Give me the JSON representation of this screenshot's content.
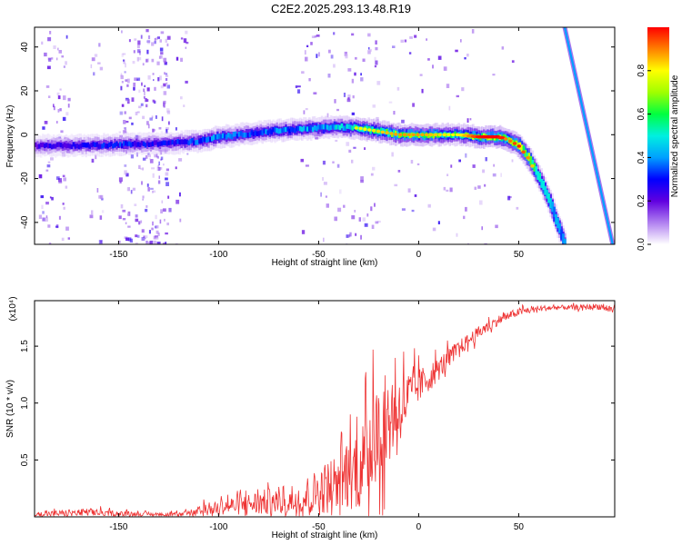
{
  "chart_data": [
    {
      "type": "heatmap",
      "title": "C2E2.2025.293.13.48.R19",
      "xlabel": "Height of straight line (km)",
      "ylabel": "Frequency (Hz)",
      "xlim": [
        -192,
        98
      ],
      "ylim": [
        -50,
        49
      ],
      "xticks": [
        -150,
        -100,
        -50,
        0,
        50
      ],
      "yticks": [
        -40,
        -20,
        0,
        20,
        40
      ],
      "colorbar": {
        "label": "Normalized spectral amplitude",
        "range": [
          0,
          1
        ],
        "ticks": [
          0.0,
          0.2,
          0.4,
          0.6,
          0.8
        ],
        "tick_labels": [
          "0.0",
          "0.2",
          "0.4",
          "0.6",
          "0.8"
        ],
        "colors": [
          "#ffffff",
          "#b080f0",
          "#6000e0",
          "#0000ff",
          "#00a0ff",
          "#00f0e0",
          "#00ff40",
          "#a0ff00",
          "#ffff00",
          "#ff8000",
          "#ff0000"
        ]
      },
      "ridge": {
        "x": [
          -192,
          -170,
          -150,
          -130,
          -110,
          -100,
          -90,
          -80,
          -70,
          -60,
          -50,
          -40,
          -30,
          -20,
          -10,
          0,
          10,
          20,
          30,
          40,
          44,
          50,
          55,
          60,
          65,
          70,
          73
        ],
        "frequency": [
          -5,
          -5,
          -4.5,
          -4,
          -3,
          -1,
          0,
          1,
          2,
          2.5,
          3,
          3.5,
          3,
          1.5,
          0,
          0,
          0,
          0,
          -1,
          -1,
          -2,
          -5,
          -11,
          -20,
          -30,
          -43,
          -50
        ],
        "amplitude": [
          0.3,
          0.35,
          0.4,
          0.35,
          0.45,
          0.5,
          0.45,
          0.45,
          0.5,
          0.5,
          0.55,
          0.6,
          0.7,
          0.75,
          0.8,
          0.8,
          0.75,
          0.7,
          0.9,
          0.95,
          0.8,
          0.9,
          0.8,
          0.7,
          0.6,
          0.5,
          0.5
        ]
      },
      "secondary_ridge": {
        "x": [
          73,
          97
        ],
        "frequency": [
          49,
          -50
        ],
        "amplitude": 0.4
      }
    },
    {
      "type": "line",
      "xlabel": "Height of straight line (km)",
      "ylabel": "SNR (10 * v/v)",
      "y_multiplier": "(x10⁴)",
      "xlim": [
        -192,
        98
      ],
      "ylim": [
        0,
        1.9
      ],
      "xticks": [
        -150,
        -100,
        -50,
        0,
        50
      ],
      "yticks": [
        0.5,
        1.0,
        1.5
      ],
      "ytick_labels": [
        "0.5",
        "1.0",
        "1.5"
      ],
      "color": "#ee3333",
      "envelope": {
        "x": [
          -192,
          -180,
          -165,
          -150,
          -130,
          -118,
          -110,
          -100,
          -90,
          -80,
          -70,
          -60,
          -50,
          -45,
          -40,
          -35,
          -30,
          -25,
          -20,
          -15,
          -10,
          -5,
          0,
          5,
          10,
          15,
          20,
          25,
          30,
          40,
          50,
          60,
          70,
          80,
          90,
          97
        ],
        "mean": [
          0.02,
          0.03,
          0.04,
          0.03,
          0.02,
          0.02,
          0.04,
          0.09,
          0.1,
          0.12,
          0.14,
          0.16,
          0.22,
          0.27,
          0.32,
          0.38,
          0.42,
          0.55,
          0.75,
          0.85,
          0.95,
          1.05,
          1.15,
          1.22,
          1.3,
          1.4,
          1.48,
          1.55,
          1.62,
          1.73,
          1.8,
          1.83,
          1.84,
          1.84,
          1.85,
          1.82
        ],
        "spread": [
          0.03,
          0.04,
          0.05,
          0.03,
          0.02,
          0.03,
          0.07,
          0.1,
          0.12,
          0.16,
          0.18,
          0.22,
          0.3,
          0.35,
          0.42,
          0.45,
          0.5,
          0.6,
          0.65,
          0.6,
          0.45,
          0.35,
          0.22,
          0.18,
          0.15,
          0.12,
          0.1,
          0.09,
          0.08,
          0.06,
          0.05,
          0.04,
          0.03,
          0.03,
          0.04,
          0.06
        ]
      }
    }
  ]
}
